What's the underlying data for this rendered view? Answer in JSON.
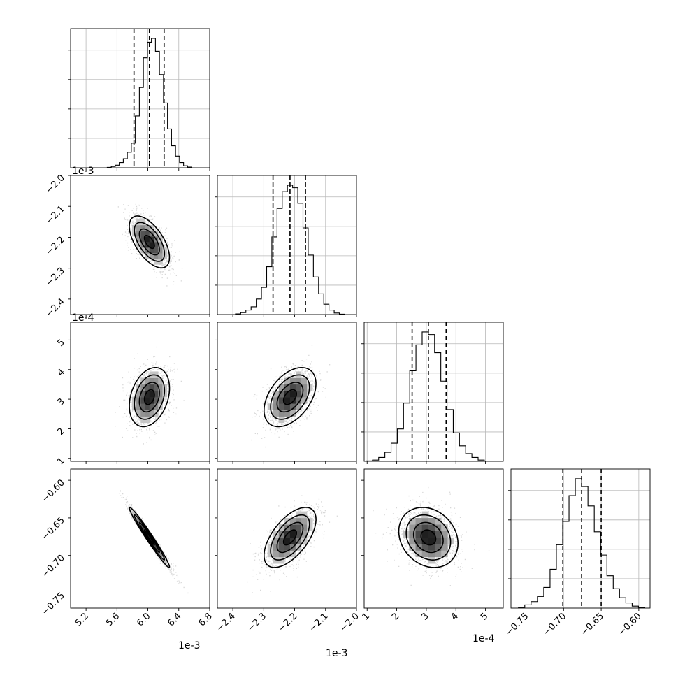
{
  "chart_data": {
    "type": "corner",
    "parameters": [
      {
        "offset_label": "1e-3",
        "range": [
          5.0,
          6.8
        ],
        "ticks": [
          5.2,
          5.6,
          6.0,
          6.4,
          6.8
        ],
        "tick_labels": [
          "5.2",
          "5.6",
          "6.0",
          "6.4",
          "6.8"
        ],
        "median": 6.02,
        "quantiles": [
          5.82,
          6.02,
          6.21
        ]
      },
      {
        "offset_label": "1e-3",
        "range": [
          -2.45,
          -2.0
        ],
        "ticks": [
          -2.4,
          -2.3,
          -2.2,
          -2.1,
          -2.0
        ],
        "tick_labels": [
          "−2.4",
          "−2.3",
          "−2.2",
          "−2.1",
          "−2.0"
        ],
        "median": -2.215,
        "quantiles": [
          -2.27,
          -2.215,
          -2.165
        ]
      },
      {
        "offset_label": "1e-4",
        "range": [
          0.9,
          5.6
        ],
        "ticks": [
          1,
          2,
          3,
          4,
          5
        ],
        "tick_labels": [
          "1",
          "2",
          "3",
          "4",
          "5"
        ],
        "median": 3.07,
        "quantiles": [
          2.52,
          3.07,
          3.67
        ]
      },
      {
        "offset_label": "",
        "range": [
          -0.77,
          -0.585
        ],
        "ticks": [
          -0.75,
          -0.7,
          -0.65,
          -0.6
        ],
        "tick_labels": [
          "−0.75",
          "−0.70",
          "−0.65",
          "−0.60"
        ],
        "median": -0.676,
        "quantiles": [
          -0.701,
          -0.676,
          -0.65
        ]
      }
    ],
    "histograms": [
      [
        0.3,
        1,
        2,
        4,
        7,
        12,
        19,
        40,
        62,
        85,
        97,
        100,
        90,
        72,
        50,
        30,
        17,
        9,
        4,
        1.5,
        0.5
      ],
      [
        0.5,
        1.5,
        3.5,
        6,
        12,
        21,
        37,
        60,
        82,
        95,
        100,
        98,
        86,
        67,
        46,
        29,
        16,
        8,
        3.5,
        1.2,
        0.3
      ],
      [
        0.3,
        1,
        3,
        7,
        14,
        25,
        45,
        70,
        90,
        100,
        98,
        84,
        62,
        40,
        22,
        12,
        6,
        3,
        1,
        0.2
      ],
      [
        0.6,
        2.5,
        5,
        9,
        16,
        30,
        49,
        67,
        87,
        100,
        94,
        79,
        59,
        41,
        25,
        15,
        8,
        4,
        1.5,
        0.4
      ]
    ],
    "correlations": [
      [
        1,
        -0.6,
        0.3,
        -0.98
      ],
      [
        -0.6,
        1,
        0.45,
        0.6
      ],
      [
        0.3,
        0.45,
        1,
        -0.2
      ],
      [
        -0.98,
        0.6,
        -0.2,
        1
      ]
    ],
    "stds": [
      0.13,
      0.042,
      0.5,
      0.02
    ],
    "contour_sigma_levels": [
      0.5,
      1.0,
      1.5,
      2.0
    ]
  },
  "colors": {
    "frame": "#000000",
    "scatter": "#8c8c8c",
    "grid": "#b8b8b8"
  }
}
